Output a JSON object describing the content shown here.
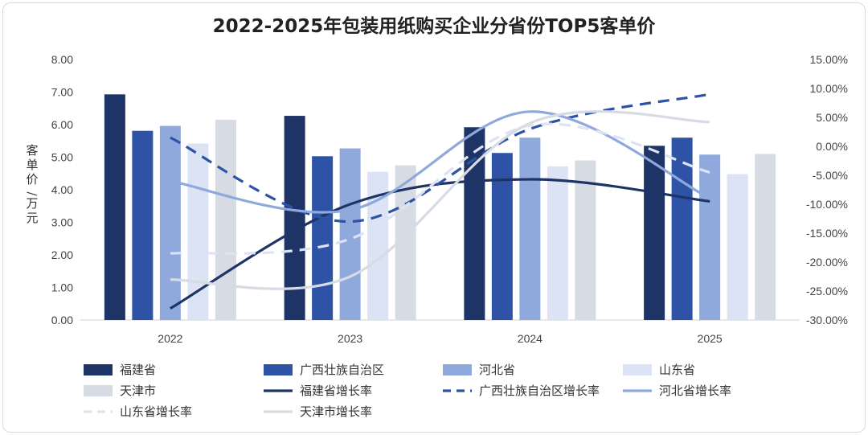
{
  "chart_data": {
    "type": "bar+line",
    "title": "2022-2025年包装用纸购买企业分省份TOP5客单价",
    "ylabel": "客单价/万元",
    "categories": [
      "2022",
      "2023",
      "2024",
      "2025"
    ],
    "ylim": [
      0,
      8
    ],
    "y2lim": [
      -0.3,
      0.15
    ],
    "y_ticks": [
      "0.00",
      "1.00",
      "2.00",
      "3.00",
      "4.00",
      "5.00",
      "6.00",
      "7.00",
      "8.00"
    ],
    "y2_ticks": [
      "-30.00%",
      "-25.00%",
      "-20.00%",
      "-15.00%",
      "-10.00%",
      "-5.00%",
      "0.00%",
      "5.00%",
      "10.00%",
      "15.00%"
    ],
    "series": [
      {
        "name": "福建省",
        "values": [
          6.93,
          6.27,
          5.92,
          5.35
        ],
        "color": "#1f3466"
      },
      {
        "name": "广西壮族自治区",
        "values": [
          5.81,
          5.03,
          5.13,
          5.6
        ],
        "color": "#2e53a6"
      },
      {
        "name": "河北省",
        "values": [
          5.96,
          5.27,
          5.6,
          5.08
        ],
        "color": "#8fa9dc"
      },
      {
        "name": "山东省",
        "values": [
          5.42,
          4.55,
          4.72,
          4.48
        ],
        "color": "#dbe3f4"
      },
      {
        "name": "天津市",
        "values": [
          6.15,
          4.75,
          4.9,
          5.1
        ],
        "color": "#d7dbe3"
      }
    ],
    "growth_series": [
      {
        "name": "福建省增长率",
        "values": [
          -0.28,
          -0.1,
          -0.057,
          -0.095
        ],
        "color": "#1f3466",
        "dash": false
      },
      {
        "name": "广西壮族自治区增长率",
        "values": [
          0.015,
          -0.13,
          0.03,
          0.09
        ],
        "color": "#2e53a6",
        "dash": true
      },
      {
        "name": "河北省增长率",
        "values": [
          -0.06,
          -0.11,
          0.06,
          -0.09
        ],
        "color": "#8fa9dc",
        "dash": false
      },
      {
        "name": "山东省增长率",
        "values": [
          -0.185,
          -0.16,
          0.036,
          -0.045
        ],
        "color": "#dbe3f4",
        "dash": true
      },
      {
        "name": "天津市增长率",
        "values": [
          -0.23,
          -0.225,
          0.04,
          0.042
        ],
        "color": "#d7dbe3",
        "dash": false
      }
    ]
  }
}
